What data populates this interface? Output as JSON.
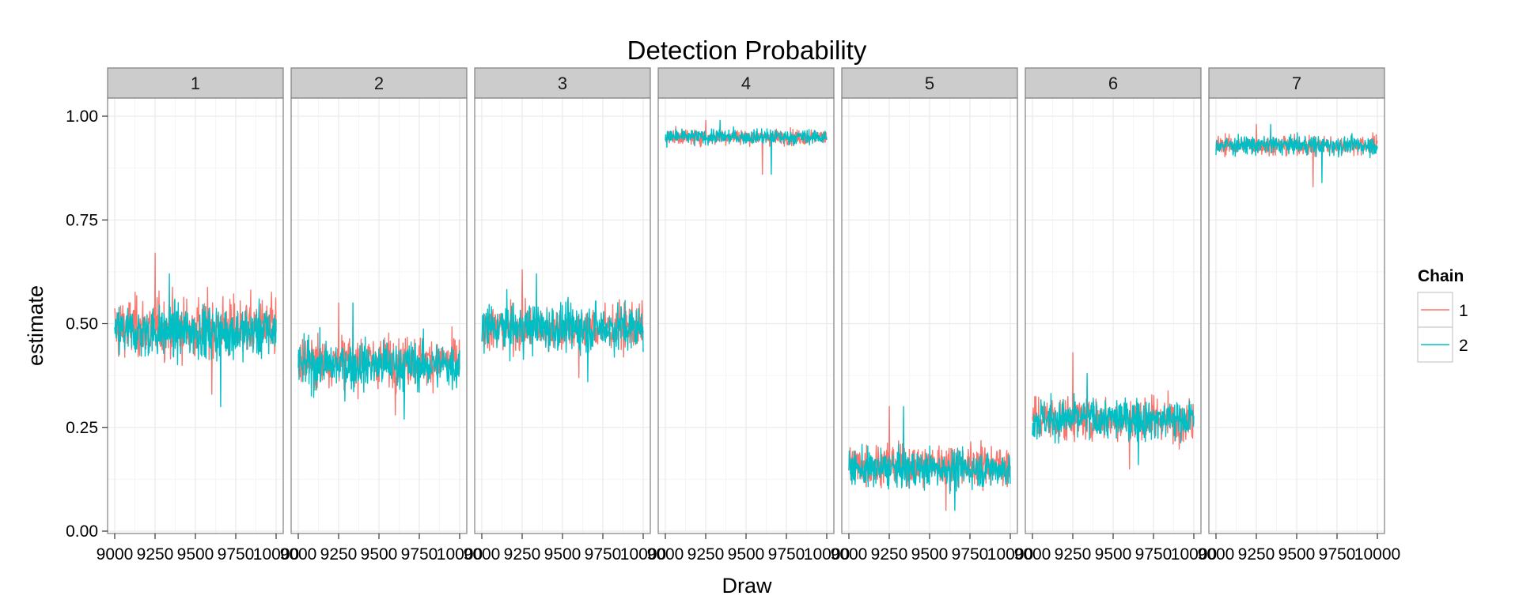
{
  "chart_data": {
    "type": "line",
    "title": "Detection Probability",
    "xlabel": "Draw",
    "ylabel": "estimate",
    "x_range": [
      9000,
      10000
    ],
    "x_ticks": [
      9000,
      9250,
      9500,
      9750,
      10000
    ],
    "x_tick_labels": [
      "9000",
      "9250",
      "9500",
      "9750",
      "10000"
    ],
    "ylim": [
      0,
      1
    ],
    "y_ticks": [
      0,
      0.25,
      0.5,
      0.75,
      1.0
    ],
    "y_tick_labels": [
      "0.00",
      "0.25",
      "0.50",
      "0.75",
      "1.00"
    ],
    "grid": true,
    "facets": [
      {
        "label": "1",
        "series": [
          {
            "name": "1",
            "mean": 0.49,
            "min": 0.33,
            "max": 0.67
          },
          {
            "name": "2",
            "mean": 0.48,
            "min": 0.3,
            "max": 0.62
          }
        ]
      },
      {
        "label": "2",
        "series": [
          {
            "name": "1",
            "mean": 0.41,
            "min": 0.28,
            "max": 0.55
          },
          {
            "name": "2",
            "mean": 0.4,
            "min": 0.27,
            "max": 0.55
          }
        ]
      },
      {
        "label": "3",
        "series": [
          {
            "name": "1",
            "mean": 0.49,
            "min": 0.37,
            "max": 0.63
          },
          {
            "name": "2",
            "mean": 0.49,
            "min": 0.36,
            "max": 0.62
          }
        ]
      },
      {
        "label": "4",
        "series": [
          {
            "name": "1",
            "mean": 0.95,
            "min": 0.86,
            "max": 0.99
          },
          {
            "name": "2",
            "mean": 0.95,
            "min": 0.86,
            "max": 0.99
          }
        ]
      },
      {
        "label": "5",
        "series": [
          {
            "name": "1",
            "mean": 0.16,
            "min": 0.05,
            "max": 0.3
          },
          {
            "name": "2",
            "mean": 0.15,
            "min": 0.05,
            "max": 0.3
          }
        ]
      },
      {
        "label": "6",
        "series": [
          {
            "name": "1",
            "mean": 0.27,
            "min": 0.15,
            "max": 0.43
          },
          {
            "name": "2",
            "mean": 0.27,
            "min": 0.16,
            "max": 0.38
          }
        ]
      },
      {
        "label": "7",
        "series": [
          {
            "name": "1",
            "mean": 0.93,
            "min": 0.83,
            "max": 0.98
          },
          {
            "name": "2",
            "mean": 0.93,
            "min": 0.84,
            "max": 0.98
          }
        ]
      }
    ],
    "legend": {
      "title": "Chain",
      "placement": "right",
      "entries": [
        {
          "label": "1",
          "color": "#F8766D"
        },
        {
          "label": "2",
          "color": "#00BFC4"
        }
      ]
    },
    "colors": {
      "panel_bg": "#FFFFFF",
      "panel_border": "#7F7F7F",
      "strip_bg": "#CCCCCC",
      "grid_major": "#EBEBEB",
      "grid_minor": "#F5F5F5"
    }
  }
}
